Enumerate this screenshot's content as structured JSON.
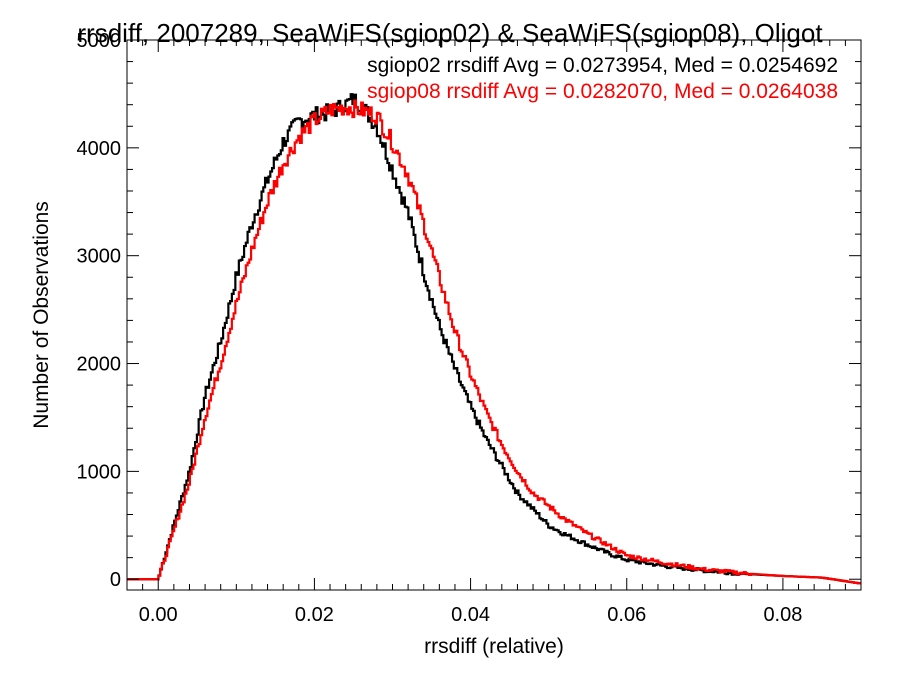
{
  "chart_data": {
    "type": "line",
    "title": "rrsdiff, 2007289, SeaWiFS(sgiop02) & SeaWiFS(sgiop08), Oligot",
    "xlabel": "rrsdiff (relative)",
    "ylabel": "Number of Observations",
    "xlim": [
      -0.004,
      0.09
    ],
    "ylim": [
      -100,
      5000
    ],
    "xticks": [
      0.0,
      0.02,
      0.04,
      0.06,
      0.08
    ],
    "xtick_labels": [
      "0.00",
      "0.02",
      "0.04",
      "0.06",
      "0.08"
    ],
    "yticks": [
      0,
      1000,
      2000,
      3000,
      4000,
      5000
    ],
    "ytick_labels": [
      "0",
      "1000",
      "2000",
      "3000",
      "4000",
      "5000"
    ],
    "grid": false,
    "legend_position": "top-right",
    "stats_lines": [
      {
        "text": "sgiop02 rrsdiff Avg = 0.0273954, Med = 0.0254692",
        "color": "#000000"
      },
      {
        "text": "sgiop08 rrsdiff Avg = 0.0282070, Med = 0.0264038",
        "color": "#ff0000"
      }
    ],
    "series": [
      {
        "color": "#000000",
        "x": [
          -0.004,
          -0.001,
          0.0,
          0.002,
          0.004,
          0.006,
          0.008,
          0.01,
          0.012,
          0.014,
          0.016,
          0.018,
          0.02,
          0.022,
          0.024,
          0.025,
          0.026,
          0.028,
          0.03,
          0.032,
          0.034,
          0.036,
          0.038,
          0.04,
          0.042,
          0.044,
          0.046,
          0.048,
          0.05,
          0.052,
          0.055,
          0.058,
          0.06,
          0.065,
          0.07,
          0.075,
          0.08,
          0.085,
          0.09
        ],
        "y": [
          0,
          0,
          0,
          500,
          1000,
          1700,
          2200,
          2800,
          3300,
          3700,
          4050,
          4250,
          4300,
          4330,
          4400,
          4450,
          4400,
          4200,
          3800,
          3400,
          2850,
          2350,
          1950,
          1600,
          1300,
          1050,
          800,
          650,
          500,
          420,
          320,
          230,
          180,
          120,
          80,
          50,
          30,
          15,
          -40
        ]
      },
      {
        "color": "#ff0000",
        "x": [
          -0.004,
          -0.001,
          0.0,
          0.002,
          0.004,
          0.006,
          0.008,
          0.01,
          0.012,
          0.014,
          0.016,
          0.018,
          0.02,
          0.022,
          0.024,
          0.026,
          0.028,
          0.03,
          0.032,
          0.034,
          0.036,
          0.038,
          0.04,
          0.042,
          0.044,
          0.046,
          0.048,
          0.05,
          0.052,
          0.055,
          0.058,
          0.06,
          0.065,
          0.07,
          0.075,
          0.08,
          0.085,
          0.09
        ],
        "y": [
          0,
          0,
          0,
          450,
          900,
          1500,
          2000,
          2550,
          3050,
          3500,
          3850,
          4100,
          4250,
          4350,
          4380,
          4350,
          4300,
          4050,
          3750,
          3300,
          2800,
          2300,
          1900,
          1550,
          1250,
          1000,
          800,
          680,
          560,
          420,
          300,
          220,
          150,
          90,
          55,
          30,
          15,
          -40
        ]
      }
    ]
  }
}
